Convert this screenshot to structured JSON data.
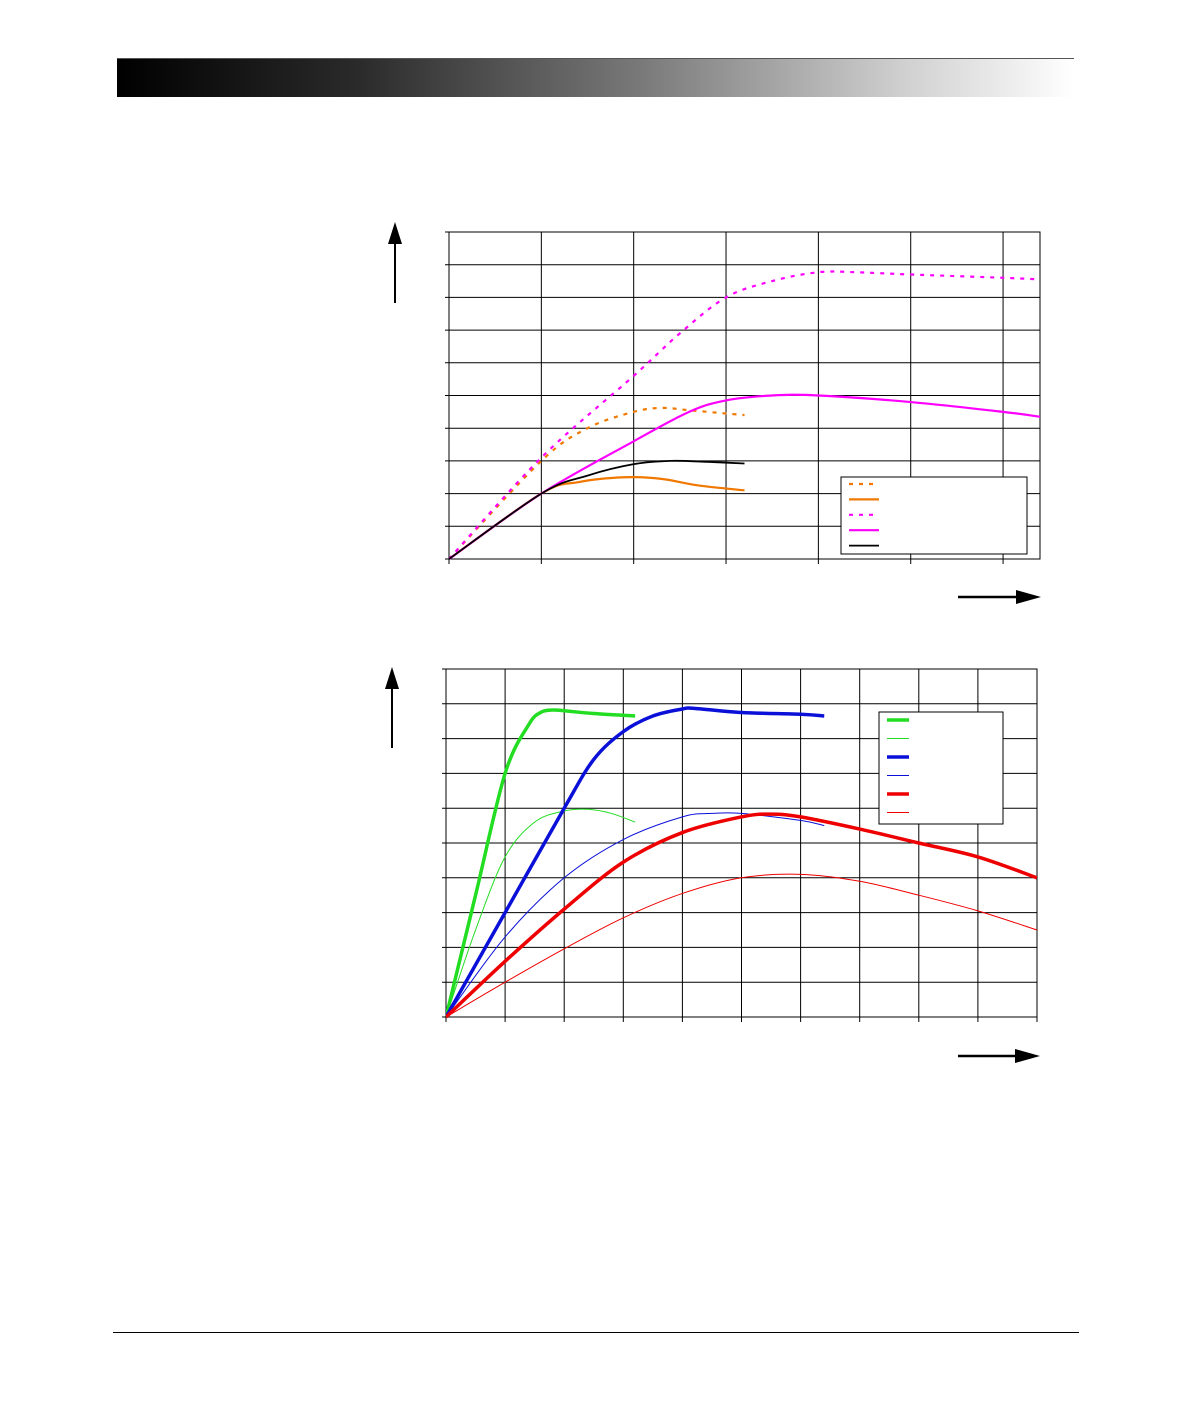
{
  "header": {
    "label": ""
  },
  "footer": {
    "label": ""
  },
  "chart_data": [
    {
      "type": "line",
      "title": "",
      "xlabel": "",
      "ylabel": "",
      "xlim": [
        0,
        6.4
      ],
      "ylim": [
        0,
        10
      ],
      "x_gridlines": [
        0,
        1,
        2,
        3,
        4,
        5,
        6
      ],
      "y_gridlines": [
        0,
        1,
        2,
        3,
        4,
        5,
        6,
        7,
        8,
        9,
        10
      ],
      "grid": true,
      "legend_position": "bottom-right",
      "series": [
        {
          "color": "#f07800",
          "style": "dotted",
          "width": 2.2,
          "x": [
            0,
            1,
            1.5,
            2,
            2.3,
            2.6,
            3,
            3.2
          ],
          "y": [
            0,
            3,
            4,
            4.5,
            4.62,
            4.55,
            4.45,
            4.4
          ]
        },
        {
          "color": "#f07800",
          "style": "solid",
          "width": 2.2,
          "x": [
            0,
            1,
            1.4,
            1.9,
            2.3,
            2.7,
            3.2
          ],
          "y": [
            0,
            2,
            2.35,
            2.5,
            2.45,
            2.25,
            2.1
          ]
        },
        {
          "color": "#ff00ff",
          "style": "dotted",
          "width": 2.2,
          "x": [
            0,
            1,
            2,
            2.5,
            3,
            3.5,
            4,
            4.4,
            5,
            6,
            6.4
          ],
          "y": [
            0,
            3.1,
            5.6,
            6.9,
            8,
            8.5,
            8.77,
            8.77,
            8.7,
            8.6,
            8.55
          ]
        },
        {
          "color": "#ff00ff",
          "style": "solid",
          "width": 2.2,
          "x": [
            0,
            1,
            2,
            2.6,
            3,
            3.5,
            4,
            5,
            6,
            6.4
          ],
          "y": [
            0,
            2,
            3.6,
            4.5,
            4.85,
            5,
            5,
            4.8,
            4.5,
            4.35
          ]
        },
        {
          "color": "#000000",
          "style": "solid",
          "width": 1.8,
          "x": [
            0,
            1,
            1.5,
            2,
            2.4,
            2.8,
            3.2
          ],
          "y": [
            0,
            2,
            2.55,
            2.9,
            3,
            2.97,
            2.92
          ]
        }
      ],
      "legend_entries": [
        "",
        "",
        "",
        "",
        ""
      ]
    },
    {
      "type": "line",
      "title": "",
      "xlabel": "",
      "ylabel": "",
      "xlim": [
        0,
        10
      ],
      "ylim": [
        0,
        10
      ],
      "x_gridlines": [
        0,
        1,
        2,
        3,
        4,
        5,
        6,
        7,
        8,
        9,
        10
      ],
      "y_gridlines": [
        0,
        1,
        2,
        3,
        4,
        5,
        6,
        7,
        8,
        9,
        10
      ],
      "grid": true,
      "legend_position": "top-right",
      "series": [
        {
          "color": "#22dd22",
          "style": "solid",
          "width": 3.5,
          "x": [
            0,
            0.5,
            1,
            1.4,
            1.6,
            1.8,
            2.0,
            2.5,
            3.2
          ],
          "y": [
            0,
            3.5,
            7,
            8.4,
            8.75,
            8.82,
            8.8,
            8.72,
            8.65
          ]
        },
        {
          "color": "#22dd22",
          "style": "solid",
          "width": 1,
          "x": [
            0,
            0.5,
            1,
            1.5,
            2,
            2.4,
            2.8,
            3.2
          ],
          "y": [
            0,
            2.5,
            4.6,
            5.6,
            5.92,
            5.97,
            5.85,
            5.6
          ]
        },
        {
          "color": "#0a10d8",
          "style": "solid",
          "width": 3.5,
          "x": [
            0,
            1,
            2,
            2.5,
            3,
            3.5,
            4,
            4.2,
            5,
            6,
            6.4
          ],
          "y": [
            0,
            3,
            6,
            7.4,
            8.2,
            8.65,
            8.85,
            8.87,
            8.75,
            8.7,
            8.65
          ]
        },
        {
          "color": "#0a10d8",
          "style": "solid",
          "width": 1,
          "x": [
            0,
            1,
            2,
            3,
            4,
            4.5,
            5,
            6,
            6.4
          ],
          "y": [
            0,
            2.3,
            4,
            5.1,
            5.75,
            5.85,
            5.85,
            5.65,
            5.5
          ]
        },
        {
          "color": "#ee0000",
          "style": "solid",
          "width": 3.5,
          "x": [
            0,
            1,
            2,
            3,
            4,
            5,
            5.5,
            6,
            7,
            8,
            9,
            10
          ],
          "y": [
            0,
            1.6,
            3.1,
            4.45,
            5.3,
            5.75,
            5.83,
            5.75,
            5.4,
            5,
            4.6,
            4
          ]
        },
        {
          "color": "#ee0000",
          "style": "solid",
          "width": 1,
          "x": [
            0,
            1,
            2,
            3,
            4,
            5,
            6,
            7,
            8,
            9,
            10
          ],
          "y": [
            0,
            1,
            1.96,
            2.85,
            3.55,
            4,
            4.1,
            3.9,
            3.5,
            3.05,
            2.5
          ]
        }
      ],
      "legend_entries": [
        "",
        "",
        "",
        "",
        "",
        ""
      ]
    }
  ]
}
